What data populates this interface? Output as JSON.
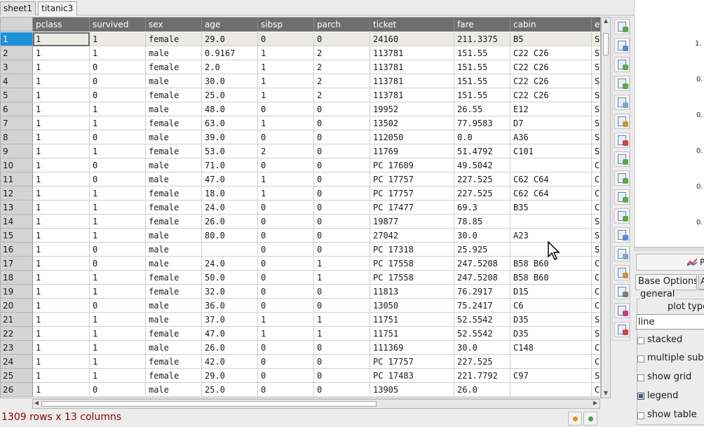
{
  "tabs": [
    {
      "label": "sheet1",
      "active": false
    },
    {
      "label": "titanic3",
      "active": true
    }
  ],
  "columns": [
    "pclass",
    "survived",
    "sex",
    "age",
    "sibsp",
    "parch",
    "ticket",
    "fare",
    "cabin",
    "e"
  ],
  "rows": [
    [
      "1",
      "1",
      "female",
      "29.0",
      "0",
      "0",
      "24160",
      "211.3375",
      "B5",
      "S"
    ],
    [
      "1",
      "1",
      "male",
      "0.9167",
      "1",
      "2",
      "113781",
      "151.55",
      "C22 C26",
      "S"
    ],
    [
      "1",
      "0",
      "female",
      "2.0",
      "1",
      "2",
      "113781",
      "151.55",
      "C22 C26",
      "S"
    ],
    [
      "1",
      "0",
      "male",
      "30.0",
      "1",
      "2",
      "113781",
      "151.55",
      "C22 C26",
      "S"
    ],
    [
      "1",
      "0",
      "female",
      "25.0",
      "1",
      "2",
      "113781",
      "151.55",
      "C22 C26",
      "S"
    ],
    [
      "1",
      "1",
      "male",
      "48.0",
      "0",
      "0",
      "19952",
      "26.55",
      "E12",
      "S"
    ],
    [
      "1",
      "1",
      "female",
      "63.0",
      "1",
      "0",
      "13502",
      "77.9583",
      "D7",
      "S"
    ],
    [
      "1",
      "0",
      "male",
      "39.0",
      "0",
      "0",
      "112050",
      "0.0",
      "A36",
      "S"
    ],
    [
      "1",
      "1",
      "female",
      "53.0",
      "2",
      "0",
      "11769",
      "51.4792",
      "C101",
      "S"
    ],
    [
      "1",
      "0",
      "male",
      "71.0",
      "0",
      "0",
      "PC 17609",
      "49.5042",
      "",
      "C"
    ],
    [
      "1",
      "0",
      "male",
      "47.0",
      "1",
      "0",
      "PC 17757",
      "227.525",
      "C62 C64",
      "C"
    ],
    [
      "1",
      "1",
      "female",
      "18.0",
      "1",
      "0",
      "PC 17757",
      "227.525",
      "C62 C64",
      "C"
    ],
    [
      "1",
      "1",
      "female",
      "24.0",
      "0",
      "0",
      "PC 17477",
      "69.3",
      "B35",
      "C"
    ],
    [
      "1",
      "1",
      "female",
      "26.0",
      "0",
      "0",
      "19877",
      "78.85",
      "",
      "S"
    ],
    [
      "1",
      "1",
      "male",
      "80.0",
      "0",
      "0",
      "27042",
      "30.0",
      "A23",
      "S"
    ],
    [
      "1",
      "0",
      "male",
      "",
      "0",
      "0",
      "PC 17318",
      "25.925",
      "",
      "S"
    ],
    [
      "1",
      "0",
      "male",
      "24.0",
      "0",
      "1",
      "PC 17558",
      "247.5208",
      "B58 B60",
      "C"
    ],
    [
      "1",
      "1",
      "female",
      "50.0",
      "0",
      "1",
      "PC 17558",
      "247.5208",
      "B58 B60",
      "C"
    ],
    [
      "1",
      "1",
      "female",
      "32.0",
      "0",
      "0",
      "11813",
      "76.2917",
      "D15",
      "C"
    ],
    [
      "1",
      "0",
      "male",
      "36.0",
      "0",
      "0",
      "13050",
      "75.2417",
      "C6",
      "C"
    ],
    [
      "1",
      "1",
      "male",
      "37.0",
      "1",
      "1",
      "11751",
      "52.5542",
      "D35",
      "S"
    ],
    [
      "1",
      "1",
      "female",
      "47.0",
      "1",
      "1",
      "11751",
      "52.5542",
      "D35",
      "S"
    ],
    [
      "1",
      "1",
      "male",
      "26.0",
      "0",
      "0",
      "111369",
      "30.0",
      "C148",
      "C"
    ],
    [
      "1",
      "1",
      "female",
      "42.0",
      "0",
      "0",
      "PC 17757",
      "227.525",
      "",
      "C"
    ],
    [
      "1",
      "1",
      "female",
      "29.0",
      "0",
      "0",
      "PC 17483",
      "221.7792",
      "C97",
      "S"
    ],
    [
      "1",
      "0",
      "male",
      "25.0",
      "0",
      "0",
      "13905",
      "26.0",
      "",
      "C"
    ]
  ],
  "row_numbers": [
    "1",
    "2",
    "3",
    "4",
    "5",
    "6",
    "7",
    "8",
    "9",
    "10",
    "11",
    "12",
    "13",
    "14",
    "15",
    "16",
    "17",
    "18",
    "19",
    "20",
    "21",
    "22",
    "23",
    "24",
    "25",
    "26"
  ],
  "status": {
    "text": "1309 rows x 13 columns"
  },
  "plot": {
    "y_ticks": [
      "1.",
      "0.",
      "0.",
      "0.",
      "0.",
      "0."
    ],
    "button_label": "P"
  },
  "options": {
    "tabs": [
      "Base Options",
      "A"
    ],
    "group_label": "general",
    "plot_type_label": "plot type",
    "plot_type_value": "line",
    "checkboxes": [
      {
        "label": "stacked",
        "checked": false
      },
      {
        "label": "multiple subplots",
        "checked": false
      },
      {
        "label": "show grid",
        "checked": false
      },
      {
        "label": "legend",
        "checked": true
      },
      {
        "label": "show table",
        "checked": false
      }
    ]
  },
  "toolbar": [
    {
      "name": "load-icon",
      "color": "#5aa84a"
    },
    {
      "name": "save-icon",
      "color": "#5a8ad0"
    },
    {
      "name": "import-icon",
      "color": "#5aa84a"
    },
    {
      "name": "export-icon",
      "color": "#5aa84a"
    },
    {
      "name": "copy-icon",
      "color": "#8aa0c8"
    },
    {
      "name": "paste-icon",
      "color": "#d09040"
    },
    {
      "name": "plot-icon",
      "color": "#d04040"
    },
    {
      "name": "transpose-icon",
      "color": "#5aa84a"
    },
    {
      "name": "merge-icon",
      "color": "#5aa84a"
    },
    {
      "name": "pivot-icon",
      "color": "#5aa84a"
    },
    {
      "name": "melt-icon",
      "color": "#5aa84a"
    },
    {
      "name": "time-series-icon",
      "color": "#5a8ad0"
    },
    {
      "name": "copy-table-icon",
      "color": "#8aa0c8"
    },
    {
      "name": "filter-icon",
      "color": "#d09040"
    },
    {
      "name": "calculator-icon",
      "color": "#7a7a7a"
    },
    {
      "name": "chart-icon",
      "color": "#c04080"
    },
    {
      "name": "clear-icon",
      "color": "#d04040"
    }
  ],
  "colors": {
    "selected_row_header": "#1e90d6",
    "column_header": "#6e6e6e",
    "status_text": "#8b0000"
  }
}
